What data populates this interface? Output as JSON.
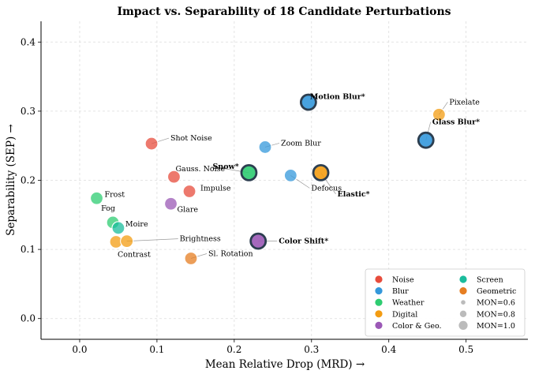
{
  "chart_data": {
    "type": "scatter",
    "title": "Impact vs. Separability of 18 Candidate Perturbations",
    "xlabel": "Mean Relative Drop (MRD) →",
    "ylabel": "Separability (SEP) →",
    "xlim": [
      -0.05,
      0.58
    ],
    "ylim": [
      -0.03,
      0.43
    ],
    "xticks": [
      "0.0",
      "0.1",
      "0.2",
      "0.3",
      "0.4",
      "0.5"
    ],
    "yticks": [
      "0.0",
      "0.1",
      "0.2",
      "0.3",
      "0.4"
    ],
    "grid": true,
    "legend_position": "bottom-right",
    "categories": [
      {
        "name": "Noise",
        "color": "#e74c3c"
      },
      {
        "name": "Blur",
        "color": "#3498db"
      },
      {
        "name": "Weather",
        "color": "#2ecc71"
      },
      {
        "name": "Digital",
        "color": "#f39c12"
      },
      {
        "name": "Color & Geo.",
        "color": "#9b59b6"
      },
      {
        "name": "Screen",
        "color": "#1abc9c"
      },
      {
        "name": "Geometric",
        "color": "#e67e22"
      }
    ],
    "size_legend": [
      "MON=0.6",
      "MON=0.8",
      "MON=1.0"
    ],
    "points": [
      {
        "label": "Shot Noise",
        "category": "Noise",
        "x": 0.093,
        "y": 0.253,
        "selected": false
      },
      {
        "label": "Gauss. Noise",
        "category": "Noise",
        "x": 0.122,
        "y": 0.205,
        "selected": false
      },
      {
        "label": "Impulse",
        "category": "Noise",
        "x": 0.142,
        "y": 0.184,
        "selected": false
      },
      {
        "label": "Motion Blur*",
        "category": "Blur",
        "x": 0.296,
        "y": 0.313,
        "selected": true
      },
      {
        "label": "Zoom Blur",
        "category": "Blur",
        "x": 0.24,
        "y": 0.248,
        "selected": false
      },
      {
        "label": "Defocus",
        "category": "Blur",
        "x": 0.273,
        "y": 0.207,
        "selected": false
      },
      {
        "label": "Glass Blur*",
        "category": "Blur",
        "x": 0.448,
        "y": 0.258,
        "selected": true
      },
      {
        "label": "Frost",
        "category": "Weather",
        "x": 0.022,
        "y": 0.174,
        "selected": false
      },
      {
        "label": "Fog",
        "category": "Weather",
        "x": 0.043,
        "y": 0.139,
        "selected": false
      },
      {
        "label": "Snow*",
        "category": "Weather",
        "x": 0.219,
        "y": 0.211,
        "selected": true
      },
      {
        "label": "Pixelate",
        "category": "Digital",
        "x": 0.465,
        "y": 0.295,
        "selected": false
      },
      {
        "label": "Elastic*",
        "category": "Digital",
        "x": 0.312,
        "y": 0.211,
        "selected": true
      },
      {
        "label": "Contrast",
        "category": "Digital",
        "x": 0.047,
        "y": 0.111,
        "selected": false
      },
      {
        "label": "Brightness",
        "category": "Digital",
        "x": 0.061,
        "y": 0.112,
        "selected": false
      },
      {
        "label": "Glare",
        "category": "Color & Geo.",
        "x": 0.118,
        "y": 0.166,
        "selected": false
      },
      {
        "label": "Color Shift*",
        "category": "Color & Geo.",
        "x": 0.231,
        "y": 0.112,
        "selected": true
      },
      {
        "label": "Moire",
        "category": "Screen",
        "x": 0.05,
        "y": 0.131,
        "selected": false
      },
      {
        "label": "Sl. Rotation",
        "category": "Geometric",
        "x": 0.144,
        "y": 0.087,
        "selected": false
      }
    ]
  }
}
